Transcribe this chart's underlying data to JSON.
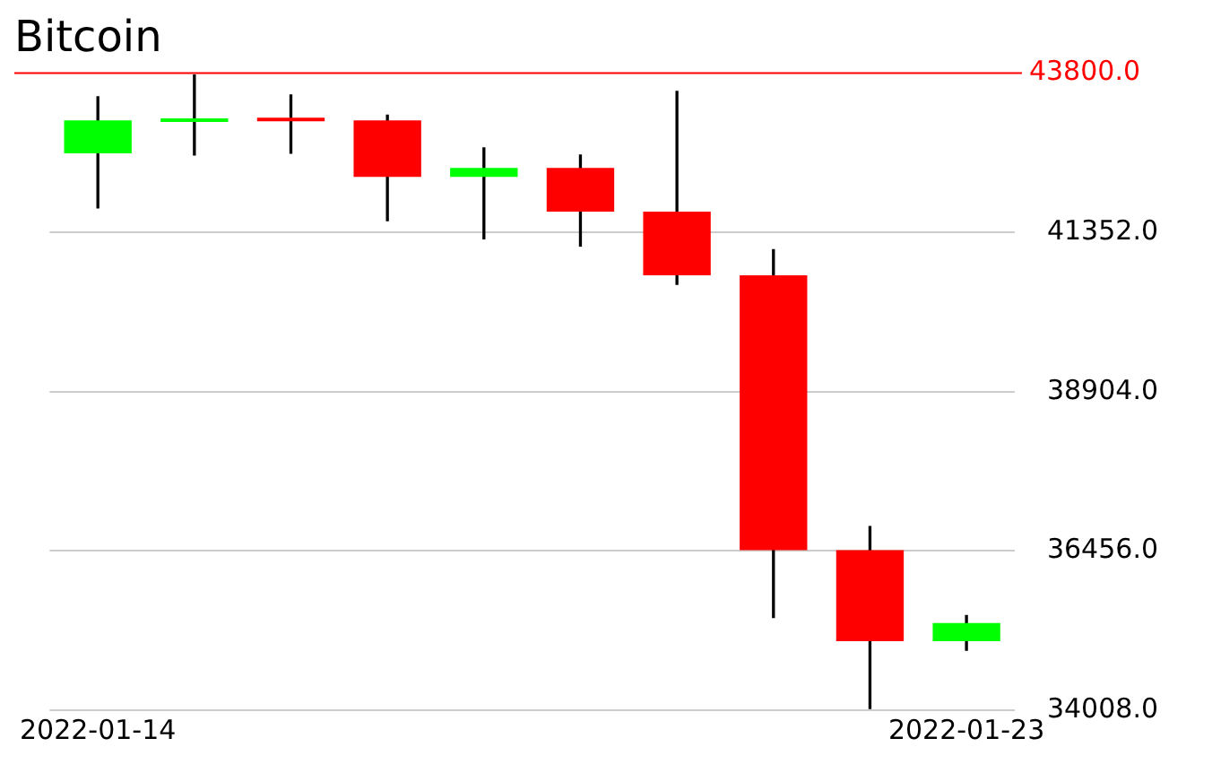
{
  "chart_data": {
    "type": "candlestick",
    "title": "Bitcoin",
    "categories": [
      "2022-01-14",
      null,
      null,
      null,
      null,
      null,
      null,
      null,
      null,
      "2022-01-23"
    ],
    "ohlc": [
      [
        42569,
        43436,
        41730,
        43073
      ],
      [
        43050,
        43772,
        42541,
        43080
      ],
      [
        43080,
        43464,
        42569,
        43060
      ],
      [
        43073,
        43156,
        41534,
        42205
      ],
      [
        42205,
        42653,
        41254,
        42345
      ],
      [
        42345,
        42541,
        41142,
        41673
      ],
      [
        41673,
        43520,
        40554,
        40694
      ],
      [
        40694,
        41086,
        35434,
        36469
      ],
      [
        36469,
        36833,
        34035,
        35070
      ],
      [
        35070,
        35462,
        34930,
        35350
      ]
    ],
    "colors": [
      "#00ff00",
      "#00ff00",
      "#ff0000",
      "#ff0000",
      "#00ff00",
      "#ff0000",
      "#ff0000",
      "#ff0000",
      "#ff0000",
      "#00ff00"
    ],
    "ylim": [
      34008,
      43800
    ],
    "yticks": [
      {
        "value": 34008,
        "label": "34008.0"
      },
      {
        "value": 36456,
        "label": "36456.0"
      },
      {
        "value": 38904,
        "label": "38904.0"
      },
      {
        "value": 41352,
        "label": "41352.0"
      }
    ],
    "ref_lines": [
      {
        "axis": "y",
        "value": 43800,
        "label": "43800.0",
        "color": "#ff0000"
      }
    ],
    "grid": "y"
  }
}
